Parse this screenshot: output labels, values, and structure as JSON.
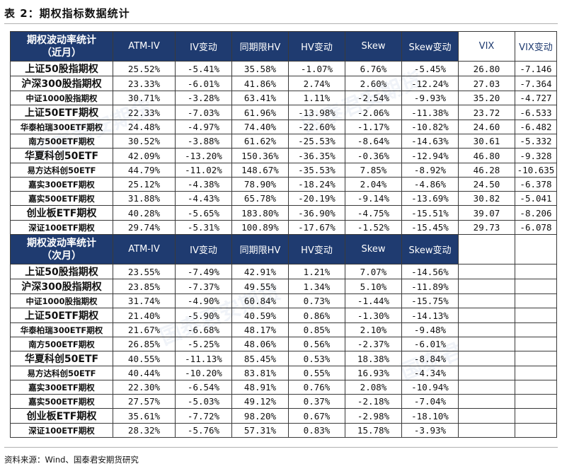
{
  "title": "表 2：期权指标数据统计",
  "watermark": "国泰君安期货",
  "source": "资料来源：Wind、国泰君安期货研究",
  "near": {
    "header_line1": "期权波动率统计",
    "header_line2": "（近月）",
    "columns": [
      "ATM-IV",
      "IV变动",
      "同期限HV",
      "HV变动",
      "Skew",
      "Skew变动",
      "VIX",
      "VIX变动"
    ],
    "rows": [
      {
        "name": "上证50股指期权",
        "atm_iv": "25.52%",
        "iv_chg": "-5.41%",
        "hv": "35.58%",
        "hv_chg": "-1.07%",
        "skew": "6.76%",
        "skew_chg": "-5.45%",
        "vix": "26.80",
        "vix_chg": "-7.146"
      },
      {
        "name": "沪深300股指期权",
        "atm_iv": "23.33%",
        "iv_chg": "-6.01%",
        "hv": "41.86%",
        "hv_chg": "2.74%",
        "skew": "2.60%",
        "skew_chg": "-12.24%",
        "vix": "27.03",
        "vix_chg": "-7.364"
      },
      {
        "name": "中证1000股指期权",
        "atm_iv": "30.71%",
        "iv_chg": "-3.28%",
        "hv": "63.41%",
        "hv_chg": "1.11%",
        "skew": "-2.54%",
        "skew_chg": "-9.93%",
        "vix": "35.20",
        "vix_chg": "-4.727"
      },
      {
        "name": "上证50ETF期权",
        "atm_iv": "22.33%",
        "iv_chg": "-7.03%",
        "hv": "61.96%",
        "hv_chg": "-13.98%",
        "skew": "-2.06%",
        "skew_chg": "-11.38%",
        "vix": "23.72",
        "vix_chg": "-6.533"
      },
      {
        "name": "华泰柏瑞300ETF期权",
        "atm_iv": "24.48%",
        "iv_chg": "-4.97%",
        "hv": "74.40%",
        "hv_chg": "-22.60%",
        "skew": "-1.17%",
        "skew_chg": "-10.82%",
        "vix": "24.60",
        "vix_chg": "-6.482"
      },
      {
        "name": "南方500ETF期权",
        "atm_iv": "30.52%",
        "iv_chg": "-3.88%",
        "hv": "61.62%",
        "hv_chg": "-25.53%",
        "skew": "-8.64%",
        "skew_chg": "-14.63%",
        "vix": "30.61",
        "vix_chg": "-5.332"
      },
      {
        "name": "华夏科创50ETF",
        "atm_iv": "42.09%",
        "iv_chg": "-13.20%",
        "hv": "150.36%",
        "hv_chg": "-36.35%",
        "skew": "-0.36%",
        "skew_chg": "-12.94%",
        "vix": "46.80",
        "vix_chg": "-9.328"
      },
      {
        "name": "易方达科创50ETF",
        "atm_iv": "44.79%",
        "iv_chg": "-11.02%",
        "hv": "148.67%",
        "hv_chg": "-35.53%",
        "skew": "7.85%",
        "skew_chg": "-8.92%",
        "vix": "46.28",
        "vix_chg": "-10.635"
      },
      {
        "name": "嘉实300ETF期权",
        "atm_iv": "25.12%",
        "iv_chg": "-4.38%",
        "hv": "78.90%",
        "hv_chg": "-18.24%",
        "skew": "2.04%",
        "skew_chg": "-4.86%",
        "vix": "24.50",
        "vix_chg": "-6.378"
      },
      {
        "name": "嘉实500ETF期权",
        "atm_iv": "31.88%",
        "iv_chg": "-4.43%",
        "hv": "65.78%",
        "hv_chg": "-20.19%",
        "skew": "-9.14%",
        "skew_chg": "-13.69%",
        "vix": "30.82",
        "vix_chg": "-5.041"
      },
      {
        "name": "创业板ETF期权",
        "atm_iv": "40.28%",
        "iv_chg": "-5.65%",
        "hv": "183.80%",
        "hv_chg": "-36.90%",
        "skew": "-4.75%",
        "skew_chg": "-15.51%",
        "vix": "39.07",
        "vix_chg": "-8.206"
      },
      {
        "name": "深证100ETF期权",
        "atm_iv": "29.74%",
        "iv_chg": "-5.31%",
        "hv": "100.89%",
        "hv_chg": "-17.67%",
        "skew": "-1.52%",
        "skew_chg": "-15.45%",
        "vix": "29.73",
        "vix_chg": "-6.078"
      }
    ]
  },
  "next": {
    "header_line1": "期权波动率统计",
    "header_line2": "（次月）",
    "columns": [
      "ATM-IV",
      "IV变动",
      "同期限HV",
      "HV变动",
      "Skew",
      "Skew变动"
    ],
    "rows": [
      {
        "name": "上证50股指期权",
        "atm_iv": "23.55%",
        "iv_chg": "-7.49%",
        "hv": "42.91%",
        "hv_chg": "1.21%",
        "skew": "7.07%",
        "skew_chg": "-14.56%"
      },
      {
        "name": "沪深300股指期权",
        "atm_iv": "23.85%",
        "iv_chg": "-7.37%",
        "hv": "49.55%",
        "hv_chg": "1.34%",
        "skew": "5.10%",
        "skew_chg": "-11.89%"
      },
      {
        "name": "中证1000股指期权",
        "atm_iv": "31.74%",
        "iv_chg": "-4.90%",
        "hv": "60.84%",
        "hv_chg": "0.73%",
        "skew": "-1.44%",
        "skew_chg": "-15.75%"
      },
      {
        "name": "上证50ETF期权",
        "atm_iv": "21.40%",
        "iv_chg": "-5.90%",
        "hv": "40.59%",
        "hv_chg": "0.86%",
        "skew": "-1.30%",
        "skew_chg": "-14.13%"
      },
      {
        "name": "华泰柏瑞300ETF期权",
        "atm_iv": "21.67%",
        "iv_chg": "-6.68%",
        "hv": "48.17%",
        "hv_chg": "0.85%",
        "skew": "2.10%",
        "skew_chg": "-9.48%"
      },
      {
        "name": "南方500ETF期权",
        "atm_iv": "26.85%",
        "iv_chg": "-5.25%",
        "hv": "48.06%",
        "hv_chg": "0.56%",
        "skew": "-2.37%",
        "skew_chg": "-6.01%"
      },
      {
        "name": "华夏科创50ETF",
        "atm_iv": "40.55%",
        "iv_chg": "-11.13%",
        "hv": "85.45%",
        "hv_chg": "0.53%",
        "skew": "18.38%",
        "skew_chg": "-8.84%"
      },
      {
        "name": "易方达科创50ETF",
        "atm_iv": "40.44%",
        "iv_chg": "-10.20%",
        "hv": "83.81%",
        "hv_chg": "0.55%",
        "skew": "16.93%",
        "skew_chg": "-4.34%"
      },
      {
        "name": "嘉实300ETF期权",
        "atm_iv": "22.30%",
        "iv_chg": "-6.54%",
        "hv": "48.91%",
        "hv_chg": "0.76%",
        "skew": "2.08%",
        "skew_chg": "-10.94%"
      },
      {
        "name": "嘉实500ETF期权",
        "atm_iv": "27.57%",
        "iv_chg": "-5.03%",
        "hv": "49.12%",
        "hv_chg": "0.37%",
        "skew": "-2.18%",
        "skew_chg": "-7.04%"
      },
      {
        "name": "创业板ETF期权",
        "atm_iv": "35.61%",
        "iv_chg": "-7.72%",
        "hv": "98.20%",
        "hv_chg": "0.67%",
        "skew": "-2.98%",
        "skew_chg": "-18.10%"
      },
      {
        "name": "深证100ETF期权",
        "atm_iv": "28.32%",
        "iv_chg": "-5.76%",
        "hv": "57.31%",
        "hv_chg": "0.83%",
        "skew": "15.78%",
        "skew_chg": "-3.93%"
      }
    ]
  }
}
